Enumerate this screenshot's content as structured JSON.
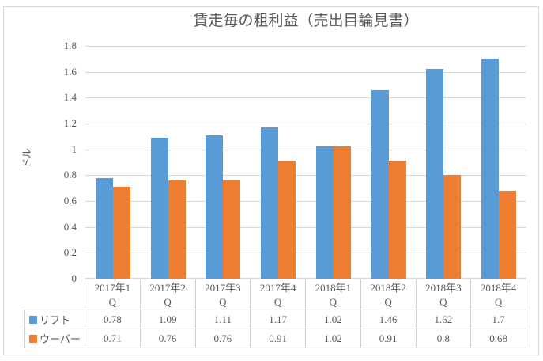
{
  "chart_data": {
    "type": "bar",
    "title": "賃走毎の粗利益（売出目論見書）",
    "xlabel": "",
    "ylabel": "ドル",
    "ylim": [
      0,
      1.8
    ],
    "y_ticks": [
      "1.8",
      "1.6",
      "1.4",
      "1.2",
      "1",
      "0.8",
      "0.6",
      "0.4",
      "0.2",
      "0"
    ],
    "grid": true,
    "legend_position": "data-table-left",
    "has_data_table": true,
    "categories": [
      "2017年1Q",
      "2017年2Q",
      "2017年3Q",
      "2017年4Q",
      "2018年1Q",
      "2018年2Q",
      "2018年3Q",
      "2018年4Q"
    ],
    "series": [
      {
        "key": "lyft",
        "name": "リフト",
        "color": "#5B9BD5",
        "values": [
          0.78,
          1.09,
          1.11,
          1.17,
          1.02,
          1.46,
          1.62,
          1.7
        ]
      },
      {
        "key": "uber",
        "name": "ウーバー",
        "color": "#ED7D31",
        "values": [
          0.71,
          0.76,
          0.76,
          0.91,
          1.02,
          0.91,
          0.8,
          0.68
        ]
      }
    ],
    "colors": {
      "gridline": "#D9D9D9",
      "table_border": "#CFCFCF",
      "text": "#595959",
      "frame_border": "#D9D9D9"
    }
  }
}
